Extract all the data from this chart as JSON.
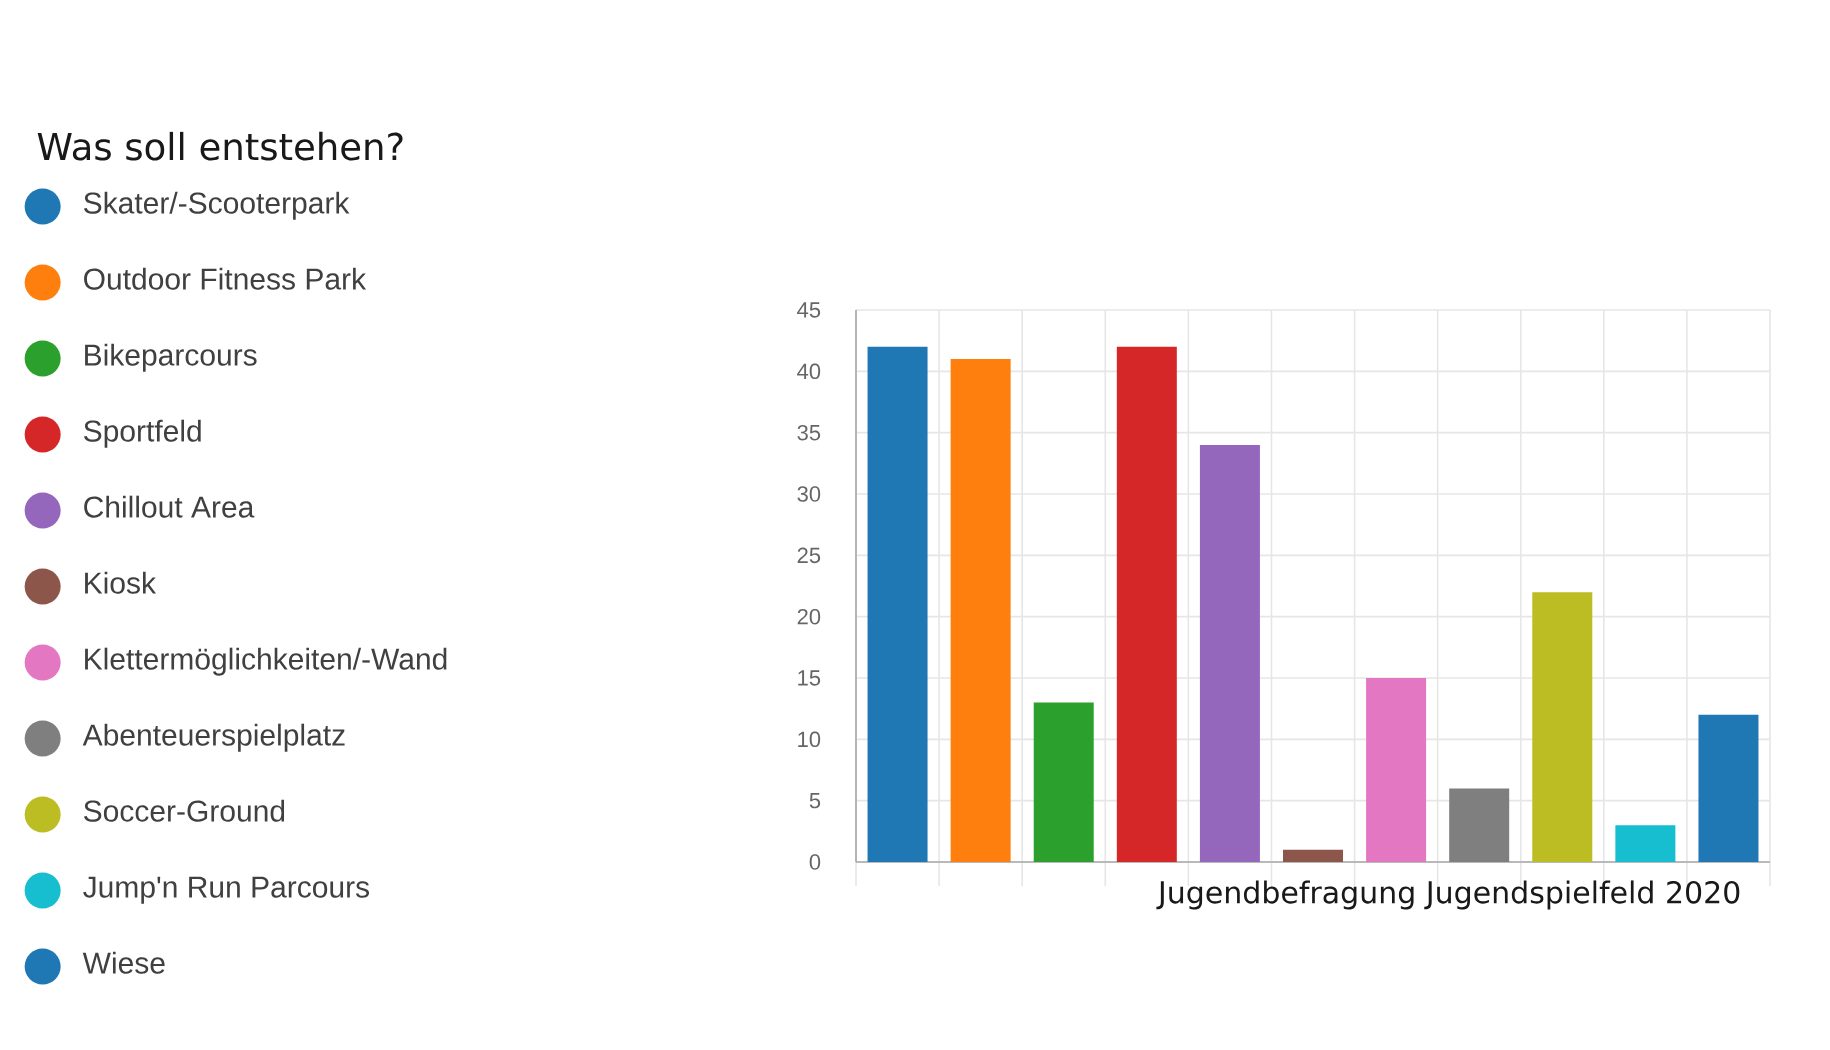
{
  "chart_data": {
    "type": "bar",
    "legend_title": "Was soll entstehen?",
    "xlabel": "Jugendbefragung Jugendspielfeld 2020",
    "categories": [
      null,
      null,
      null,
      null,
      null,
      null,
      null,
      null,
      null,
      null,
      null
    ],
    "series": [
      {
        "name": "Skater/-Scooterpark",
        "color": "#1f77b4",
        "values": [
          42,
          null,
          null,
          null,
          null,
          null,
          null,
          null,
          null,
          null,
          null
        ]
      },
      {
        "name": "Outdoor Fitness Park",
        "color": "#ff7f0e",
        "values": [
          null,
          41,
          null,
          null,
          null,
          null,
          null,
          null,
          null,
          null,
          null
        ]
      },
      {
        "name": "Bikeparcours",
        "color": "#2ca02c",
        "values": [
          null,
          null,
          13,
          null,
          null,
          null,
          null,
          null,
          null,
          null,
          null
        ]
      },
      {
        "name": "Sportfeld",
        "color": "#d62728",
        "values": [
          null,
          null,
          null,
          42,
          null,
          null,
          null,
          null,
          null,
          null,
          null
        ]
      },
      {
        "name": "Chillout Area",
        "color": "#9467bd",
        "values": [
          null,
          null,
          null,
          null,
          34,
          null,
          null,
          null,
          null,
          null,
          null
        ]
      },
      {
        "name": "Kiosk",
        "color": "#8c564b",
        "values": [
          null,
          null,
          null,
          null,
          null,
          1,
          null,
          null,
          null,
          null,
          null
        ]
      },
      {
        "name": "Klettermöglichkeiten/-Wand",
        "color": "#e377c2",
        "values": [
          null,
          null,
          null,
          null,
          null,
          null,
          15,
          null,
          null,
          null,
          null
        ]
      },
      {
        "name": "Abenteuerspielplatz",
        "color": "#7f7f7f",
        "values": [
          null,
          null,
          null,
          null,
          null,
          null,
          null,
          6,
          null,
          null,
          null
        ]
      },
      {
        "name": "Soccer-Ground",
        "color": "#bcbd22",
        "values": [
          null,
          null,
          null,
          null,
          null,
          null,
          null,
          null,
          22,
          null,
          null
        ]
      },
      {
        "name": "Jump'n Run Parcours",
        "color": "#17becf",
        "values": [
          null,
          null,
          null,
          null,
          null,
          null,
          null,
          null,
          null,
          3,
          null
        ]
      },
      {
        "name": "Wiese",
        "color": "#1f77b4",
        "values": [
          null,
          null,
          null,
          null,
          null,
          null,
          null,
          null,
          null,
          null,
          12
        ]
      }
    ],
    "ylim": [
      0,
      45
    ],
    "yticks": [
      0,
      5,
      10,
      15,
      20,
      25,
      30,
      35,
      40,
      45
    ],
    "grid": true,
    "legend": "left",
    "tick_labels": "y"
  }
}
